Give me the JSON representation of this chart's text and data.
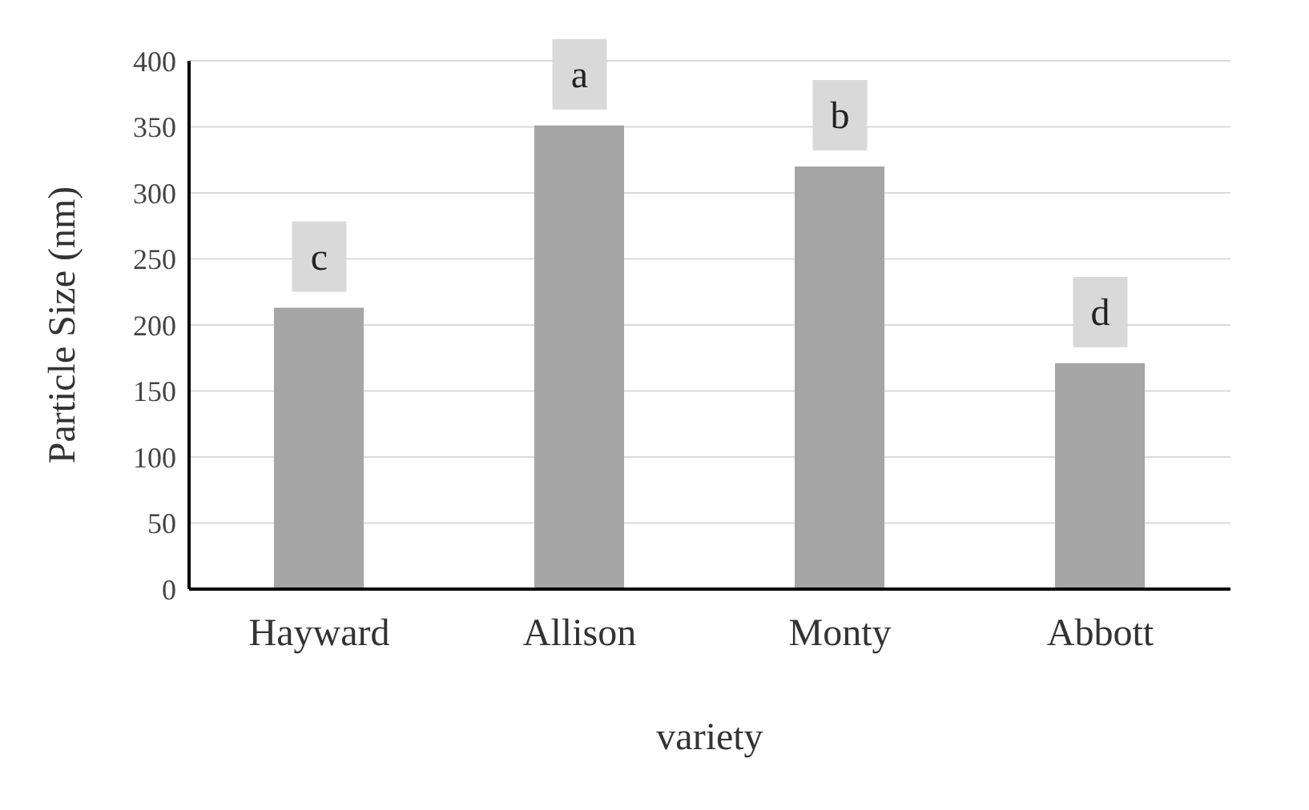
{
  "chart_data": {
    "type": "bar",
    "xlabel": "variety",
    "ylabel": "Particle  Size  (nm)",
    "categories": [
      "Hayward",
      "Allison",
      "Monty",
      "Abbott"
    ],
    "values": [
      213,
      351,
      320,
      171
    ],
    "color": "#a5a5a5",
    "ylim": [
      0,
      400
    ],
    "yticks": [
      0,
      50,
      100,
      150,
      200,
      250,
      300,
      350,
      400
    ],
    "grid": "y",
    "annotations": [
      {
        "text": "c",
        "x": "Hayward",
        "y": 213
      },
      {
        "text": "a",
        "x": "Allison",
        "y": 351
      },
      {
        "text": "b",
        "x": "Monty",
        "y": 320
      },
      {
        "text": "d",
        "x": "Abbott",
        "y": 171
      }
    ]
  }
}
